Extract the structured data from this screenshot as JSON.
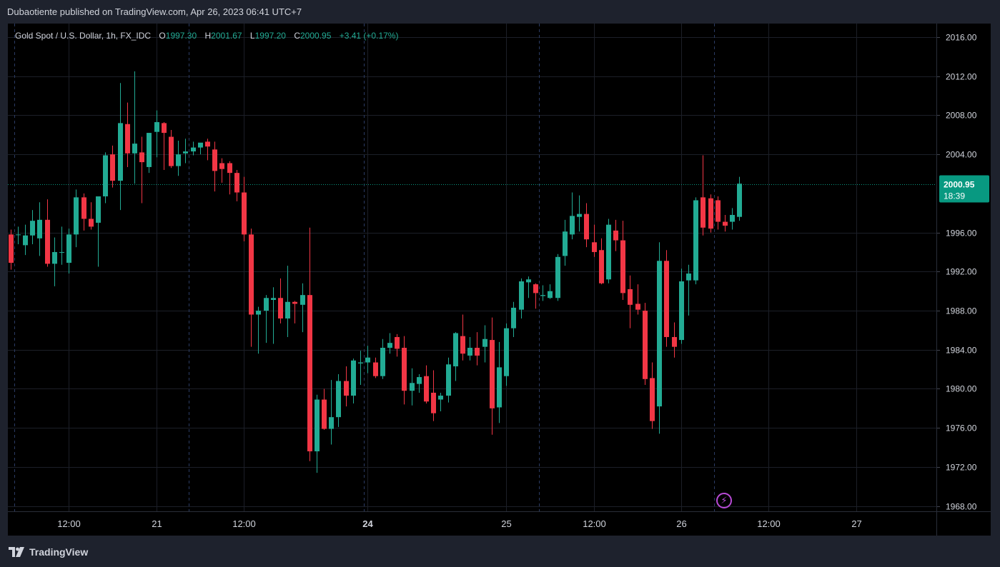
{
  "caption": {
    "author": "Dubaotiente",
    "text": "published on TradingView.com, Apr 26, 2023 06:41 UTC+7"
  },
  "legend": {
    "symbol": "Gold Spot / U.S. Dollar, 1h, FX_IDC",
    "o_label": "O",
    "o_value": "1997.30",
    "h_label": "H",
    "h_value": "2001.67",
    "l_label": "L",
    "l_value": "1997.20",
    "c_label": "C",
    "c_value": "2000.95",
    "change": "+3.41 (+0.17%)"
  },
  "last_price": {
    "value": "2000.95",
    "countdown": "18:39",
    "price": 2000.95
  },
  "footer": {
    "brand": "TradingView",
    "logo_icon": "tradingview-logo-icon"
  },
  "colors": {
    "up": "#22ab94",
    "down": "#f23645",
    "label_bg": "#089981",
    "grid": "#1c1f28",
    "session": "#2b3b63"
  },
  "chart_data": {
    "type": "candlestick",
    "ylim": [
      1966,
      2019
    ],
    "y_ticks": [
      "2016.00",
      "2012.00",
      "2008.00",
      "2004.00",
      "1996.00",
      "1992.00",
      "1988.00",
      "1984.00",
      "1980.00",
      "1976.00",
      "1972.00",
      "1968.00"
    ],
    "x_ticks": [
      {
        "label": "12:00",
        "index": 8,
        "bold": false
      },
      {
        "label": "21",
        "index": 20,
        "bold": false
      },
      {
        "label": "12:00",
        "index": 32,
        "bold": false
      },
      {
        "label": "24",
        "index": 49,
        "bold": true
      },
      {
        "label": "25",
        "index": 68,
        "bold": false
      },
      {
        "label": "12:00",
        "index": 80,
        "bold": false
      },
      {
        "label": "26",
        "index": 92,
        "bold": false
      },
      {
        "label": "12:00",
        "index": 104,
        "bold": false
      },
      {
        "label": "27",
        "index": 116,
        "bold": false
      }
    ],
    "session_breaks": [
      0.5,
      24.5,
      48.5,
      72.5,
      96.5
    ],
    "candles": [
      {
        "o": 1995.8,
        "h": 1996.3,
        "l": 1992.2,
        "c": 1992.9
      },
      {
        "o": 1995.8,
        "h": 1996.6,
        "l": 1994.8,
        "c": 1995.8
      },
      {
        "o": 1994.7,
        "h": 1996.8,
        "l": 1993.7,
        "c": 1995.7
      },
      {
        "o": 1995.7,
        "h": 1998.3,
        "l": 1994.8,
        "c": 1997.2
      },
      {
        "o": 1995.4,
        "h": 1999.1,
        "l": 1993.6,
        "c": 1997.3
      },
      {
        "o": 1997.3,
        "h": 1999.4,
        "l": 1992.5,
        "c": 1992.8
      },
      {
        "o": 1992.8,
        "h": 1995.5,
        "l": 1990.5,
        "c": 1994.0
      },
      {
        "o": 1994.0,
        "h": 1996.6,
        "l": 1992.7,
        "c": 1994.0
      },
      {
        "o": 1992.9,
        "h": 1996.4,
        "l": 1991.8,
        "c": 1995.8
      },
      {
        "o": 1995.8,
        "h": 2000.4,
        "l": 1994.5,
        "c": 1999.6
      },
      {
        "o": 1999.6,
        "h": 2000.0,
        "l": 1996.2,
        "c": 1997.4
      },
      {
        "o": 1997.4,
        "h": 1999.1,
        "l": 1996.3,
        "c": 1996.6
      },
      {
        "o": 1997.0,
        "h": 1999.7,
        "l": 1992.5,
        "c": 1999.7
      },
      {
        "o": 1999.7,
        "h": 2004.2,
        "l": 1999.0,
        "c": 2003.9
      },
      {
        "o": 2004.0,
        "h": 2004.9,
        "l": 2000.6,
        "c": 2001.3
      },
      {
        "o": 2001.3,
        "h": 2011.3,
        "l": 1998.3,
        "c": 2007.2
      },
      {
        "o": 2007.1,
        "h": 2009.3,
        "l": 2002.7,
        "c": 2004.1
      },
      {
        "o": 2004.1,
        "h": 2012.5,
        "l": 2001.0,
        "c": 2005.1
      },
      {
        "o": 2004.2,
        "h": 2005.8,
        "l": 1999.0,
        "c": 2003.2
      },
      {
        "o": 2002.7,
        "h": 2006.2,
        "l": 2002.1,
        "c": 2006.2
      },
      {
        "o": 2006.3,
        "h": 2008.5,
        "l": 2003.7,
        "c": 2007.3
      },
      {
        "o": 2007.2,
        "h": 2007.3,
        "l": 2002.4,
        "c": 2006.2
      },
      {
        "o": 2005.8,
        "h": 2006.5,
        "l": 2002.6,
        "c": 2002.8
      },
      {
        "o": 2002.8,
        "h": 2005.4,
        "l": 2001.8,
        "c": 2004.0
      },
      {
        "o": 2004.1,
        "h": 2005.6,
        "l": 2003.1,
        "c": 2004.3
      },
      {
        "o": 2004.3,
        "h": 2005.3,
        "l": 2003.9,
        "c": 2004.7
      },
      {
        "o": 2004.7,
        "h": 2005.0,
        "l": 2004.0,
        "c": 2005.2
      },
      {
        "o": 2005.3,
        "h": 2005.6,
        "l": 2003.4,
        "c": 2004.8
      },
      {
        "o": 2004.5,
        "h": 2005.3,
        "l": 2000.2,
        "c": 2002.3
      },
      {
        "o": 2003.1,
        "h": 2003.6,
        "l": 2001.1,
        "c": 2002.5
      },
      {
        "o": 2003.1,
        "h": 2003.3,
        "l": 1999.9,
        "c": 2002.1
      },
      {
        "o": 2002.1,
        "h": 2002.4,
        "l": 1999.2,
        "c": 2000.1
      },
      {
        "o": 2000.1,
        "h": 2001.7,
        "l": 1995.1,
        "c": 1995.8
      },
      {
        "o": 1995.8,
        "h": 1996.4,
        "l": 1984.3,
        "c": 1987.6
      },
      {
        "o": 1987.6,
        "h": 1988.4,
        "l": 1983.6,
        "c": 1988.0
      },
      {
        "o": 1988.0,
        "h": 1989.6,
        "l": 1984.7,
        "c": 1989.3
      },
      {
        "o": 1989.1,
        "h": 1990.4,
        "l": 1984.6,
        "c": 1989.3
      },
      {
        "o": 1989.3,
        "h": 1991.3,
        "l": 1986.7,
        "c": 1987.2
      },
      {
        "o": 1987.2,
        "h": 1992.6,
        "l": 1985.3,
        "c": 1988.9
      },
      {
        "o": 1988.9,
        "h": 1989.0,
        "l": 1986.7,
        "c": 1988.7
      },
      {
        "o": 1988.6,
        "h": 1990.8,
        "l": 1985.8,
        "c": 1989.6
      },
      {
        "o": 1989.6,
        "h": 1996.5,
        "l": 1972.6,
        "c": 1973.6
      },
      {
        "o": 1973.6,
        "h": 1979.4,
        "l": 1971.4,
        "c": 1978.9
      },
      {
        "o": 1978.9,
        "h": 1980.0,
        "l": 1975.8,
        "c": 1975.9
      },
      {
        "o": 1975.9,
        "h": 1980.9,
        "l": 1974.3,
        "c": 1977.1
      },
      {
        "o": 1977.1,
        "h": 1981.5,
        "l": 1976.1,
        "c": 1980.8
      },
      {
        "o": 1980.8,
        "h": 1982.3,
        "l": 1978.2,
        "c": 1979.3
      },
      {
        "o": 1979.3,
        "h": 1983.1,
        "l": 1978.5,
        "c": 1982.9
      },
      {
        "o": 1982.6,
        "h": 1983.9,
        "l": 1980.4,
        "c": 1982.7
      },
      {
        "o": 1982.7,
        "h": 1984.4,
        "l": 1981.6,
        "c": 1983.2
      },
      {
        "o": 1982.7,
        "h": 1983.2,
        "l": 1981.1,
        "c": 1981.3
      },
      {
        "o": 1981.3,
        "h": 1985.1,
        "l": 1981.0,
        "c": 1984.2
      },
      {
        "o": 1984.2,
        "h": 1985.7,
        "l": 1983.6,
        "c": 1984.7
      },
      {
        "o": 1985.3,
        "h": 1985.6,
        "l": 1983.3,
        "c": 1984.1
      },
      {
        "o": 1984.2,
        "h": 1985.4,
        "l": 1978.4,
        "c": 1979.8
      },
      {
        "o": 1979.8,
        "h": 1982.1,
        "l": 1978.3,
        "c": 1980.6
      },
      {
        "o": 1980.5,
        "h": 1981.5,
        "l": 1979.6,
        "c": 1981.2
      },
      {
        "o": 1981.3,
        "h": 1982.4,
        "l": 1978.5,
        "c": 1978.7
      },
      {
        "o": 1979.6,
        "h": 1981.9,
        "l": 1976.7,
        "c": 1977.5
      },
      {
        "o": 1978.9,
        "h": 1979.6,
        "l": 1977.7,
        "c": 1979.3
      },
      {
        "o": 1979.3,
        "h": 1983.2,
        "l": 1978.6,
        "c": 1982.5
      },
      {
        "o": 1982.3,
        "h": 1985.8,
        "l": 1980.8,
        "c": 1985.7
      },
      {
        "o": 1985.4,
        "h": 1987.6,
        "l": 1982.9,
        "c": 1983.6
      },
      {
        "o": 1983.4,
        "h": 1985.3,
        "l": 1982.9,
        "c": 1984.2
      },
      {
        "o": 1984.2,
        "h": 1985.8,
        "l": 1982.4,
        "c": 1983.4
      },
      {
        "o": 1984.3,
        "h": 1986.5,
        "l": 1982.7,
        "c": 1985.1
      },
      {
        "o": 1985.0,
        "h": 1987.3,
        "l": 1975.3,
        "c": 1978.0
      },
      {
        "o": 1978.1,
        "h": 1984.8,
        "l": 1976.5,
        "c": 1982.2
      },
      {
        "o": 1981.3,
        "h": 1986.7,
        "l": 1980.3,
        "c": 1986.2
      },
      {
        "o": 1986.2,
        "h": 1988.9,
        "l": 1985.3,
        "c": 1988.3
      },
      {
        "o": 1988.1,
        "h": 1991.3,
        "l": 1987.2,
        "c": 1991.0
      },
      {
        "o": 1990.9,
        "h": 1991.5,
        "l": 1989.3,
        "c": 1991.2
      },
      {
        "o": 1990.7,
        "h": 1990.8,
        "l": 1988.2,
        "c": 1989.8
      },
      {
        "o": 1989.5,
        "h": 1990.6,
        "l": 1989.0,
        "c": 1989.6
      },
      {
        "o": 1989.3,
        "h": 1990.7,
        "l": 1989.2,
        "c": 1990.0
      },
      {
        "o": 1989.3,
        "h": 1993.8,
        "l": 1989.0,
        "c": 1993.5
      },
      {
        "o": 1993.6,
        "h": 1997.3,
        "l": 1992.6,
        "c": 1996.1
      },
      {
        "o": 1995.8,
        "h": 2000.1,
        "l": 1995.3,
        "c": 1997.7
      },
      {
        "o": 1997.6,
        "h": 1999.8,
        "l": 1996.1,
        "c": 1997.9
      },
      {
        "o": 1997.9,
        "h": 1999.0,
        "l": 1994.5,
        "c": 1995.3
      },
      {
        "o": 1995.0,
        "h": 1996.8,
        "l": 1993.5,
        "c": 1994.0
      },
      {
        "o": 1994.2,
        "h": 1995.4,
        "l": 1990.7,
        "c": 1990.8
      },
      {
        "o": 1991.2,
        "h": 1997.4,
        "l": 1990.8,
        "c": 1996.8
      },
      {
        "o": 1996.2,
        "h": 1997.3,
        "l": 1994.1,
        "c": 1995.2
      },
      {
        "o": 1995.2,
        "h": 1997.2,
        "l": 1989.1,
        "c": 1989.8
      },
      {
        "o": 1990.2,
        "h": 1991.6,
        "l": 1986.2,
        "c": 1988.6
      },
      {
        "o": 1988.7,
        "h": 1990.7,
        "l": 1987.6,
        "c": 1988.1
      },
      {
        "o": 1988.0,
        "h": 1988.8,
        "l": 1980.4,
        "c": 1981.0
      },
      {
        "o": 1981.1,
        "h": 1982.7,
        "l": 1975.9,
        "c": 1976.7
      },
      {
        "o": 1978.2,
        "h": 1995.0,
        "l": 1975.4,
        "c": 1993.1
      },
      {
        "o": 1993.1,
        "h": 1994.2,
        "l": 1984.3,
        "c": 1985.3
      },
      {
        "o": 1985.3,
        "h": 1986.8,
        "l": 1983.2,
        "c": 1984.3
      },
      {
        "o": 1985.0,
        "h": 1992.3,
        "l": 1984.6,
        "c": 1991.0
      },
      {
        "o": 1991.1,
        "h": 1992.7,
        "l": 1987.5,
        "c": 1991.8
      },
      {
        "o": 1991.1,
        "h": 1999.6,
        "l": 1990.7,
        "c": 1999.3
      },
      {
        "o": 1999.6,
        "h": 2003.9,
        "l": 1995.7,
        "c": 1996.5
      },
      {
        "o": 1999.5,
        "h": 1999.9,
        "l": 1996.0,
        "c": 1996.4
      },
      {
        "o": 1999.3,
        "h": 1999.7,
        "l": 1996.3,
        "c": 1997.1
      },
      {
        "o": 1997.1,
        "h": 1997.8,
        "l": 1996.1,
        "c": 1996.7
      },
      {
        "o": 1997.1,
        "h": 1998.5,
        "l": 1996.3,
        "c": 1997.8
      },
      {
        "o": 1997.6,
        "h": 2001.7,
        "l": 1997.2,
        "c": 2001.0
      }
    ]
  }
}
